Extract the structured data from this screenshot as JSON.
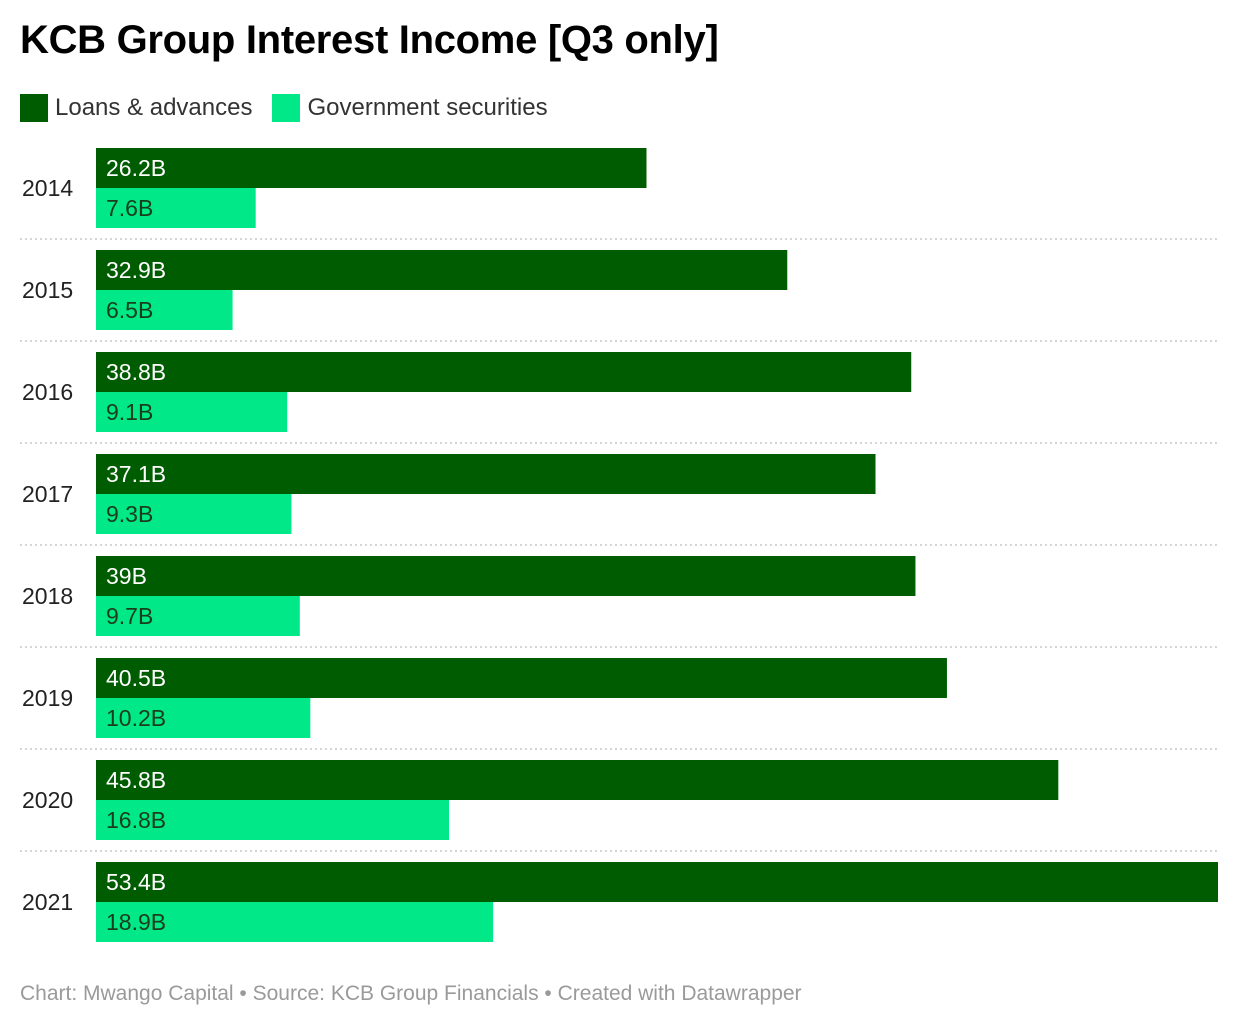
{
  "chart_data": {
    "type": "bar",
    "orientation": "horizontal",
    "title": "KCB Group Interest Income [Q3 only]",
    "categories": [
      "2014",
      "2015",
      "2016",
      "2017",
      "2018",
      "2019",
      "2020",
      "2021"
    ],
    "series": [
      {
        "name": "Loans & advances",
        "color": "#005c00",
        "label_color": "#ffffff",
        "values": [
          26.2,
          32.9,
          38.8,
          37.1,
          39,
          40.5,
          45.8,
          53.4
        ],
        "labels": [
          "26.2B",
          "32.9B",
          "38.8B",
          "37.1B",
          "39B",
          "40.5B",
          "45.8B",
          "53.4B"
        ]
      },
      {
        "name": "Government securities",
        "color": "#00e887",
        "label_color": "#1a3d1a",
        "values": [
          7.6,
          6.5,
          9.1,
          9.3,
          9.7,
          10.2,
          16.8,
          18.9
        ],
        "labels": [
          "7.6B",
          "6.5B",
          "9.1B",
          "9.3B",
          "9.7B",
          "10.2B",
          "16.8B",
          "18.9B"
        ]
      }
    ],
    "xlim": [
      0,
      53.4
    ],
    "unit": "B",
    "legend_position": "top-left",
    "grid": false,
    "row_separators": "dotted"
  },
  "footer": {
    "credit": "Chart: Mwango Capital • Source: KCB Group Financials • Created with Datawrapper"
  },
  "colors": {
    "title": "#000000",
    "separator": "#c8c8c8",
    "footer": "#9a9a9a"
  }
}
